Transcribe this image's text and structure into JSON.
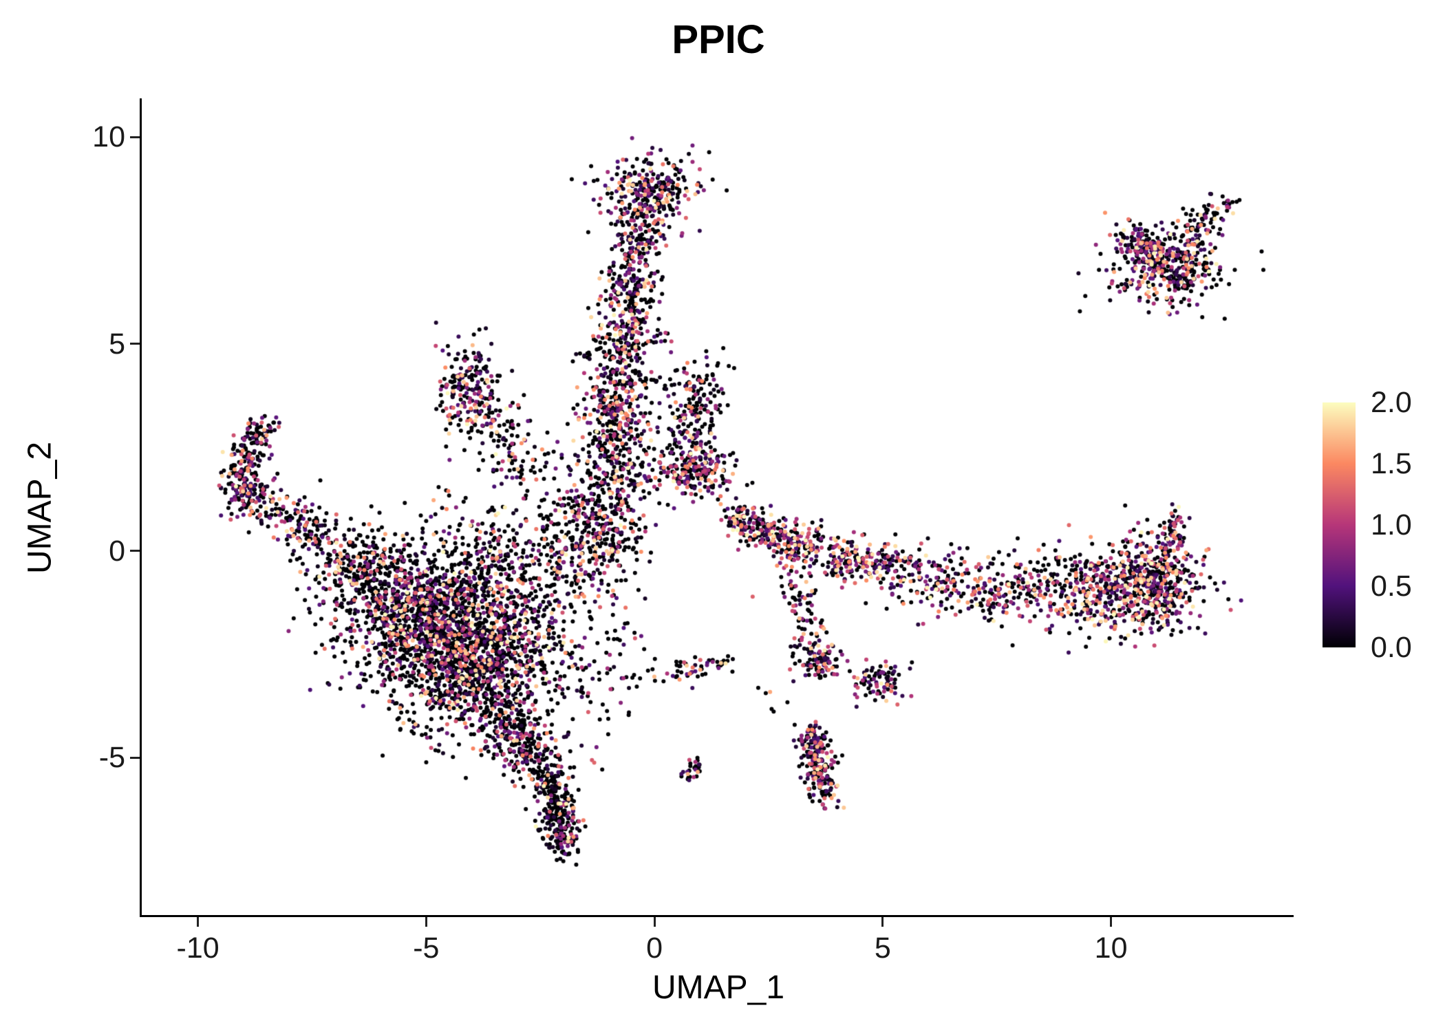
{
  "title": "PPIC",
  "axes": {
    "x": {
      "label": "UMAP_1",
      "ticks": [
        {
          "v": -10,
          "label": "-10"
        },
        {
          "v": -5,
          "label": "-5"
        },
        {
          "v": 0,
          "label": "0"
        },
        {
          "v": 5,
          "label": "5"
        },
        {
          "v": 10,
          "label": "10"
        }
      ]
    },
    "y": {
      "label": "UMAP_2",
      "ticks": [
        {
          "v": -5,
          "label": "-5"
        },
        {
          "v": 0,
          "label": "0"
        },
        {
          "v": 5,
          "label": "5"
        },
        {
          "v": 10,
          "label": "10"
        }
      ]
    }
  },
  "legend": {
    "vmin": 0,
    "vmax": 2,
    "tick_labels": [
      {
        "label": "2.0",
        "t": 1
      },
      {
        "label": "1.5",
        "t": 0.75
      },
      {
        "label": "1.0",
        "t": 0.5
      },
      {
        "label": "0.5",
        "t": 0.25
      },
      {
        "label": "0.0",
        "t": 0
      }
    ],
    "colormap": [
      {
        "t": 0,
        "color": "#000004"
      },
      {
        "t": 0.25,
        "color": "#51127C"
      },
      {
        "t": 0.5,
        "color": "#B63679"
      },
      {
        "t": 0.75,
        "color": "#FB8861"
      },
      {
        "t": 1,
        "color": "#FCFDBF"
      }
    ]
  },
  "chart_data": {
    "type": "scatter",
    "title": "PPIC",
    "xlabel": "UMAP_1",
    "ylabel": "UMAP_2",
    "xlim": [
      -11.2,
      14.0
    ],
    "ylim": [
      -8.8,
      10.9
    ],
    "point_radius_px": 3,
    "seed": 42,
    "clusters": [
      {
        "shape": "gauss",
        "n": 1300,
        "cx": -4.6,
        "cy": -1.7,
        "sx": 1.15,
        "sy": 0.85,
        "zero": 0.48,
        "gamma": 2.2
      },
      {
        "shape": "gauss",
        "n": 900,
        "cx": -3.9,
        "cy": -3.0,
        "sx": 0.95,
        "sy": 0.8,
        "zero": 0.48,
        "gamma": 2.2
      },
      {
        "shape": "line",
        "n": 300,
        "x1": -6.9,
        "y1": -0.6,
        "x2": -4.8,
        "y2": -1.4,
        "spread": 0.5,
        "zero": 0.48,
        "gamma": 2.2
      },
      {
        "shape": "line",
        "n": 260,
        "x1": -3.4,
        "y1": -4.0,
        "x2": -2.4,
        "y2": -5.3,
        "spread": 0.35,
        "zero": 0.5,
        "gamma": 2.3
      },
      {
        "shape": "line",
        "n": 300,
        "x1": -2.3,
        "y1": -5.4,
        "x2": -1.95,
        "y2": -7.3,
        "spread": 0.22,
        "zero": 0.52,
        "gamma": 2.4
      },
      {
        "shape": "gauss",
        "n": 80,
        "cx": -4.5,
        "cy": 0.3,
        "sx": 1.2,
        "sy": 0.6,
        "zero": 0.46,
        "gamma": 2.1
      },
      {
        "shape": "gauss",
        "n": 150,
        "cx": -9.0,
        "cy": 1.6,
        "sx": 0.3,
        "sy": 0.35,
        "zero": 0.4,
        "gamma": 1.9
      },
      {
        "shape": "line",
        "n": 110,
        "x1": -9.0,
        "y1": 2.1,
        "x2": -8.5,
        "y2": 3.2,
        "spread": 0.22,
        "zero": 0.4,
        "gamma": 1.9
      },
      {
        "shape": "line",
        "n": 140,
        "x1": -8.6,
        "y1": 1.2,
        "x2": -7.2,
        "y2": 0.3,
        "spread": 0.3,
        "zero": 0.45,
        "gamma": 2.0
      },
      {
        "shape": "line",
        "n": 150,
        "x1": -7.2,
        "y1": 0.2,
        "x2": -5.8,
        "y2": -0.6,
        "spread": 0.42,
        "zero": 0.45,
        "gamma": 2.1
      },
      {
        "shape": "gauss",
        "n": 170,
        "cx": -4.1,
        "cy": 4.0,
        "sx": 0.32,
        "sy": 0.5,
        "zero": 0.42,
        "gamma": 2.0
      },
      {
        "shape": "line",
        "n": 150,
        "x1": -3.9,
        "y1": 3.5,
        "x2": -2.8,
        "y2": 2.1,
        "spread": 0.42,
        "zero": 0.45,
        "gamma": 2.1
      },
      {
        "shape": "gauss",
        "n": 280,
        "cx": -2.6,
        "cy": -0.2,
        "sx": 0.9,
        "sy": 0.75,
        "zero": 0.46,
        "gamma": 2.1
      },
      {
        "shape": "gauss",
        "n": 90,
        "cx": -1.3,
        "cy": -3.0,
        "sx": 0.7,
        "sy": 0.95,
        "zero": 0.5,
        "gamma": 2.3
      },
      {
        "shape": "gauss",
        "n": 70,
        "cx": -1.6,
        "cy": 0.9,
        "sx": 0.6,
        "sy": 0.6,
        "zero": 0.45,
        "gamma": 2.0
      },
      {
        "shape": "line",
        "n": 420,
        "x1": -1.25,
        "y1": -0.3,
        "x2": -0.85,
        "y2": 2.6,
        "spread": 0.5,
        "zero": 0.42,
        "gamma": 1.9
      },
      {
        "shape": "line",
        "n": 330,
        "x1": -0.9,
        "y1": 2.6,
        "x2": -0.7,
        "y2": 4.6,
        "spread": 0.42,
        "zero": 0.42,
        "gamma": 1.9
      },
      {
        "shape": "line",
        "n": 260,
        "x1": -0.75,
        "y1": 4.7,
        "x2": -0.45,
        "y2": 6.8,
        "spread": 0.3,
        "zero": 0.4,
        "gamma": 1.8
      },
      {
        "shape": "line",
        "n": 120,
        "x1": -0.5,
        "y1": 6.9,
        "x2": -0.2,
        "y2": 8.0,
        "spread": 0.25,
        "zero": 0.42,
        "gamma": 1.9
      },
      {
        "shape": "gauss",
        "n": 300,
        "cx": -0.1,
        "cy": 8.6,
        "sx": 0.55,
        "sy": 0.45,
        "zero": 0.4,
        "gamma": 1.9
      },
      {
        "shape": "line",
        "n": 230,
        "x1": 0.6,
        "y1": 1.9,
        "x2": 1.0,
        "y2": 4.4,
        "spread": 0.33,
        "zero": 0.42,
        "gamma": 1.9
      },
      {
        "shape": "gauss",
        "n": 170,
        "cx": 0.9,
        "cy": 1.9,
        "sx": 0.45,
        "sy": 0.3,
        "zero": 0.4,
        "gamma": 1.8
      },
      {
        "shape": "gauss",
        "n": 8,
        "cx": 0.2,
        "cy": 5.15,
        "sx": 0.12,
        "sy": 0.12,
        "zero": 0.3,
        "gamma": 1.5
      },
      {
        "shape": "gauss",
        "n": 60,
        "cx": 1.9,
        "cy": 0.75,
        "sx": 0.2,
        "sy": 0.18,
        "zero": 0.35,
        "gamma": 1.7
      },
      {
        "shape": "line",
        "n": 210,
        "x1": 2.1,
        "y1": 0.6,
        "x2": 3.4,
        "y2": 0.05,
        "spread": 0.26,
        "zero": 0.32,
        "gamma": 1.7
      },
      {
        "shape": "line",
        "n": 250,
        "x1": 3.4,
        "y1": 0.0,
        "x2": 5.6,
        "y2": -0.5,
        "spread": 0.3,
        "zero": 0.32,
        "gamma": 1.6
      },
      {
        "shape": "line",
        "n": 240,
        "x1": 5.6,
        "y1": -0.55,
        "x2": 8.2,
        "y2": -1.1,
        "spread": 0.4,
        "zero": 0.35,
        "gamma": 1.7
      },
      {
        "shape": "gauss",
        "n": 520,
        "cx": 9.8,
        "cy": -0.95,
        "sx": 0.95,
        "sy": 0.5,
        "zero": 0.34,
        "gamma": 1.7
      },
      {
        "shape": "gauss",
        "n": 330,
        "cx": 11.05,
        "cy": -0.75,
        "sx": 0.5,
        "sy": 0.55,
        "zero": 0.34,
        "gamma": 1.7
      },
      {
        "shape": "line",
        "n": 70,
        "x1": 11.3,
        "y1": -0.05,
        "x2": 11.4,
        "y2": 0.95,
        "spread": 0.14,
        "zero": 0.4,
        "gamma": 1.8
      },
      {
        "shape": "line",
        "n": 80,
        "x1": 3.0,
        "y1": -0.8,
        "x2": 3.55,
        "y2": -2.5,
        "spread": 0.22,
        "zero": 0.45,
        "gamma": 2.0
      },
      {
        "shape": "gauss",
        "n": 90,
        "cx": 3.6,
        "cy": -2.7,
        "sx": 0.25,
        "sy": 0.25,
        "zero": 0.38,
        "gamma": 1.8
      },
      {
        "shape": "gauss",
        "n": 85,
        "cx": 4.95,
        "cy": -3.15,
        "sx": 0.3,
        "sy": 0.27,
        "zero": 0.35,
        "gamma": 1.7
      },
      {
        "shape": "gauss",
        "n": 6,
        "cx": 2.6,
        "cy": -3.6,
        "sx": 0.3,
        "sy": 0.2,
        "zero": 0.7,
        "gamma": 2.5
      },
      {
        "shape": "line",
        "n": 240,
        "x1": 3.45,
        "y1": -4.3,
        "x2": 3.7,
        "y2": -5.9,
        "spread": 0.17,
        "zero": 0.36,
        "gamma": 1.8
      },
      {
        "shape": "gauss",
        "n": 380,
        "cx": 11.2,
        "cy": 6.9,
        "sx": 0.6,
        "sy": 0.45,
        "zero": 0.36,
        "gamma": 1.8
      },
      {
        "shape": "line",
        "n": 70,
        "x1": 11.7,
        "y1": 7.6,
        "x2": 12.3,
        "y2": 8.2,
        "spread": 0.22,
        "zero": 0.4,
        "gamma": 1.9
      },
      {
        "shape": "gauss",
        "n": 12,
        "cx": 12.55,
        "cy": 8.35,
        "sx": 0.09,
        "sy": 0.09,
        "zero": 0.3,
        "gamma": 1.6
      },
      {
        "shape": "line",
        "n": 90,
        "x1": 10.35,
        "y1": 7.7,
        "x2": 11.0,
        "y2": 7.2,
        "spread": 0.2,
        "zero": 0.4,
        "gamma": 1.9
      },
      {
        "shape": "line",
        "n": 55,
        "x1": 0.25,
        "y1": -3.0,
        "x2": 1.6,
        "y2": -2.65,
        "spread": 0.13,
        "zero": 0.5,
        "gamma": 2.2
      },
      {
        "shape": "gauss",
        "n": 28,
        "cx": 0.85,
        "cy": -5.3,
        "sx": 0.13,
        "sy": 0.13,
        "zero": 0.45,
        "gamma": 2.0
      }
    ]
  }
}
